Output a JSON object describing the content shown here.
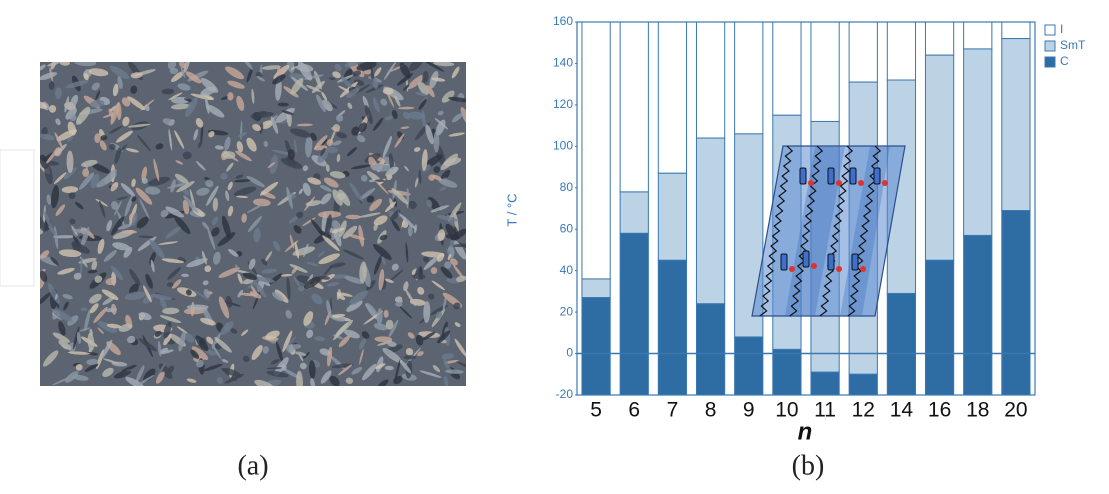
{
  "panel_a": {
    "label": "(a)"
  },
  "chart_data": {
    "type": "bar",
    "panel_label": "(b)",
    "x_label": "n",
    "y_label": "T / °C",
    "categories": [
      "5",
      "6",
      "7",
      "8",
      "9",
      "10",
      "11",
      "12",
      "14",
      "16",
      "18",
      "20"
    ],
    "series": [
      {
        "name": "I",
        "color": "#ffffff"
      },
      {
        "name": "SmT",
        "color": "#bcd3e6",
        "values": [
          36,
          78,
          87,
          104,
          106,
          115,
          112,
          131,
          132,
          144,
          147,
          152
        ]
      },
      {
        "name": "C",
        "color": "#2e6da4",
        "values": [
          27,
          58,
          45,
          24,
          8,
          2,
          -9,
          -10,
          29,
          45,
          57,
          69
        ]
      }
    ],
    "ylim": [
      -20,
      160
    ],
    "yticks": [
      -20,
      0,
      20,
      40,
      60,
      80,
      100,
      120,
      140,
      160
    ],
    "legend": "right"
  }
}
